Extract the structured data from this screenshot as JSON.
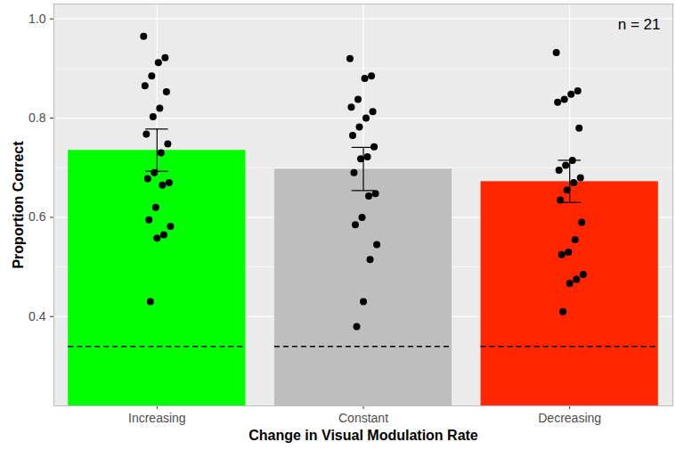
{
  "chart_data": {
    "type": "bar",
    "x_label": "Change in Visual Modulation Rate",
    "y_label": "Proportion Correct",
    "categories": [
      "Increasing",
      "Constant",
      "Decreasing"
    ],
    "values": [
      0.735,
      0.697,
      0.672
    ],
    "colors": [
      "#00ff00",
      "#bebebe",
      "#ff2600"
    ],
    "error_low": [
      0.693,
      0.654,
      0.63
    ],
    "error_high": [
      0.778,
      0.741,
      0.715
    ],
    "points": [
      [
        0.965,
        0.922,
        0.912,
        0.885,
        0.865,
        0.853,
        0.82,
        0.803,
        0.768,
        0.748,
        0.73,
        0.69,
        0.678,
        0.67,
        0.665,
        0.62,
        0.595,
        0.582,
        0.565,
        0.558,
        0.43
      ],
      [
        0.92,
        0.885,
        0.88,
        0.838,
        0.822,
        0.813,
        0.8,
        0.782,
        0.765,
        0.742,
        0.722,
        0.718,
        0.69,
        0.648,
        0.643,
        0.6,
        0.585,
        0.545,
        0.515,
        0.43,
        0.38
      ],
      [
        0.932,
        0.855,
        0.848,
        0.838,
        0.832,
        0.78,
        0.715,
        0.705,
        0.695,
        0.68,
        0.67,
        0.655,
        0.635,
        0.59,
        0.555,
        0.53,
        0.525,
        0.485,
        0.475,
        0.467,
        0.41
      ]
    ],
    "reference_line": 0.34,
    "annotation": "n = 21",
    "ylim": [
      0.22,
      1.03
    ],
    "yticks": [
      0.4,
      0.6,
      0.8,
      {
        "value": 1,
        "label": "1.0"
      }
    ],
    "grid": true
  }
}
